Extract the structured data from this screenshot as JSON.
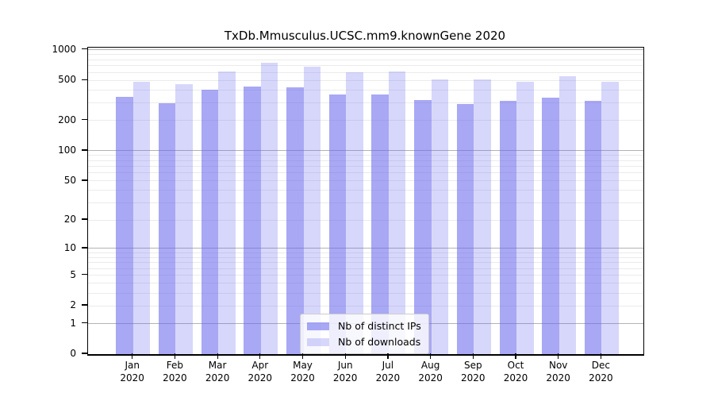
{
  "chart_data": {
    "type": "bar",
    "title": "TxDb.Mmusculus.UCSC.mm9.knownGene 2020",
    "categories": [
      "Jan",
      "Feb",
      "Mar",
      "Apr",
      "May",
      "Jun",
      "Jul",
      "Aug",
      "Sep",
      "Oct",
      "Nov",
      "Dec"
    ],
    "year": "2020",
    "series": [
      {
        "name": "Nb of distinct IPs",
        "color": "rgba(102,102,238,0.57)",
        "values": [
          345,
          297,
          405,
          430,
          427,
          361,
          363,
          318,
          292,
          312,
          339,
          315
        ]
      },
      {
        "name": "Nb of downloads",
        "color": "rgba(102,102,238,0.26)",
        "values": [
          484,
          457,
          610,
          750,
          680,
          598,
          607,
          510,
          511,
          482,
          546,
          483
        ]
      }
    ],
    "yscale": "log1p",
    "ylim": [
      0,
      1050
    ],
    "yticks": [
      1000,
      500,
      200,
      100,
      50,
      20,
      10,
      5,
      2,
      1,
      0
    ],
    "grid": {
      "minor_color": "#ebebeb",
      "decade_color": "#b3b3b3",
      "decade_lines": [
        1,
        10,
        100,
        1000
      ]
    },
    "legend": {
      "position": "inside-bottom-center"
    }
  },
  "colors": {
    "bar_base": "#6666ee",
    "bar_distinct_ips_on_white": "#a8a8f4",
    "bar_downloads_on_white": "#d8d8f8",
    "spine": "#000000",
    "background": "#ffffff"
  }
}
